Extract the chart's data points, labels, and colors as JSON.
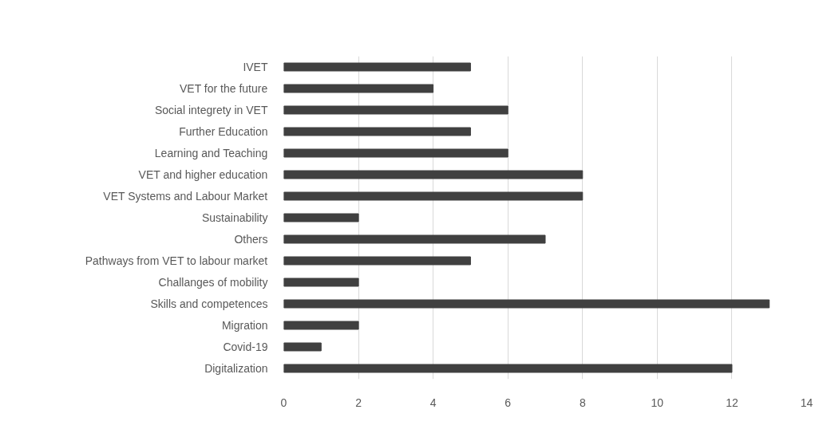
{
  "chart_data": {
    "type": "bar",
    "orientation": "horizontal",
    "categories": [
      "IVET",
      "VET for the future",
      "Social integrety in VET",
      "Further Education",
      "Learning and Teaching",
      "VET and higher education",
      "VET Systems and Labour Market",
      "Sustainability",
      "Others",
      "Pathways from VET to labour market",
      "Challanges of mobility",
      "Skills and competences",
      "Migration",
      "Covid-19",
      "Digitalization"
    ],
    "values": [
      5,
      4,
      6,
      5,
      6,
      8,
      8,
      2,
      7,
      5,
      2,
      13,
      2,
      1,
      12
    ],
    "color": "#404040",
    "xlim": [
      0,
      14
    ],
    "xticks": [
      0,
      2,
      4,
      6,
      8,
      10,
      12,
      14
    ],
    "grid": "x"
  }
}
